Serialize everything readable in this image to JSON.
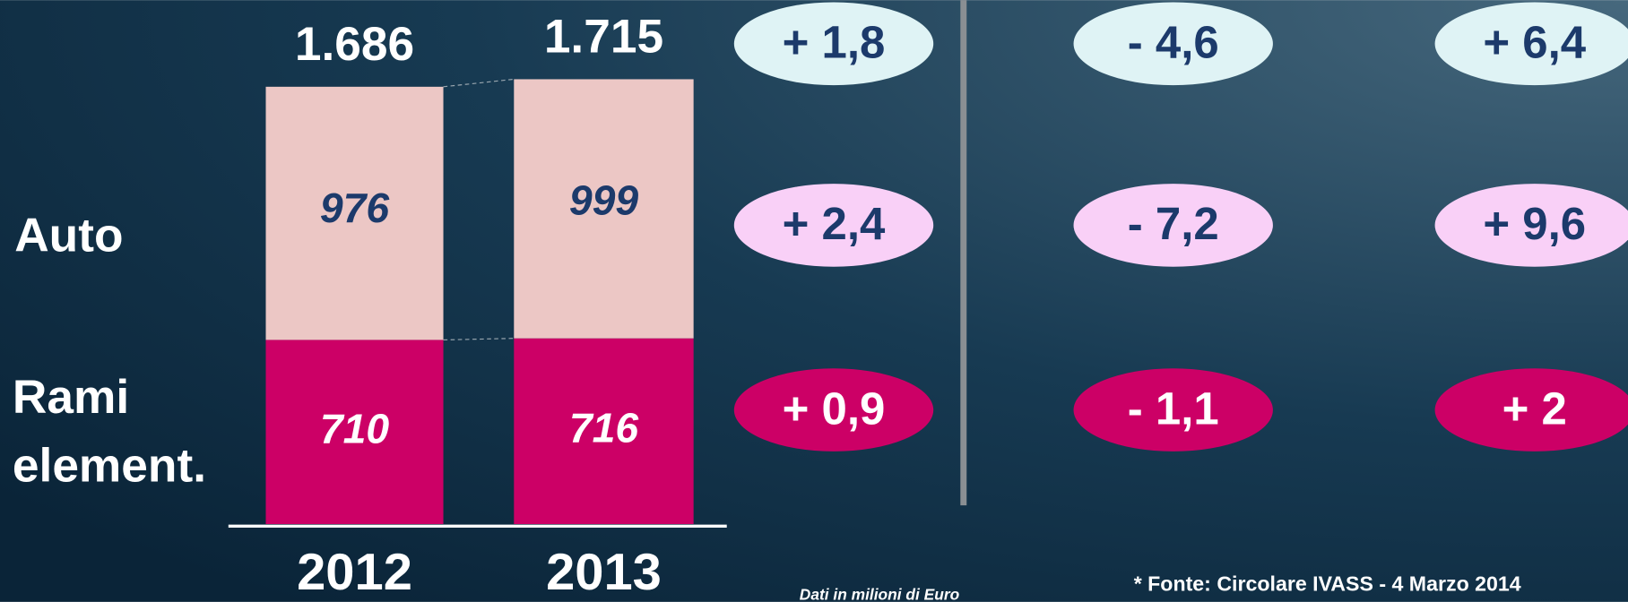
{
  "chart_data": {
    "type": "stacked_bar",
    "categories": [
      "2012",
      "2013"
    ],
    "series": [
      {
        "name": "Rami element.",
        "color": "#cc0066",
        "label_color": "#ffffff",
        "values": [
          710,
          716
        ]
      },
      {
        "name": "Auto",
        "color": "#ecc7c5",
        "label_color": "#1c3a6b",
        "values": [
          976,
          999
        ]
      }
    ],
    "totals": [
      {
        "value": 1686,
        "label": "1.686"
      },
      {
        "value": 1715,
        "label": "1.715"
      }
    ],
    "ylim": [
      0,
      2000
    ],
    "changes": {
      "rows": [
        [
          "+ 1,8",
          "- 4,6",
          "+ 6,4"
        ],
        [
          "+ 2,4",
          "- 7,2",
          "+ 9,6"
        ],
        [
          "+ 0,9",
          "- 1,1",
          "+ 2"
        ]
      ],
      "fills": [
        "#dff3f5",
        "#f9d0f7",
        "#cc0066"
      ],
      "text_colors": [
        "#1c3a6b",
        "#1c3a6b",
        "#ffffff"
      ]
    },
    "notes": [
      "Dati in milioni di Euro",
      "* Fonte: Circolare IVASS  -  4 Marzo 2014"
    ]
  }
}
